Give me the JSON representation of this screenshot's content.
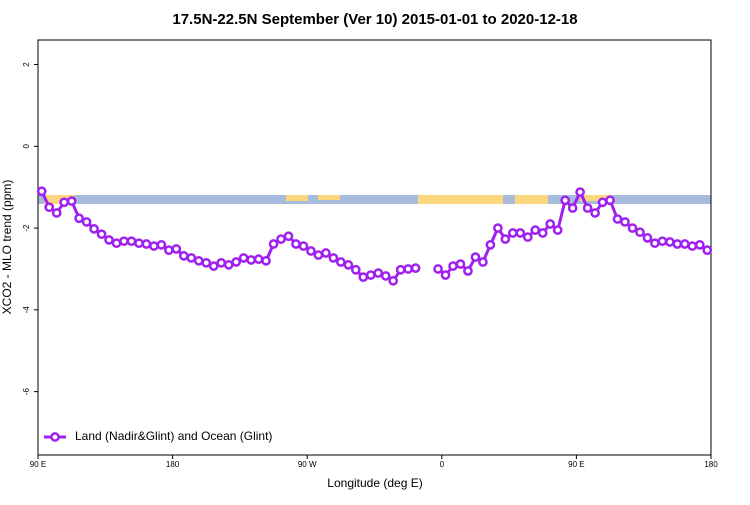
{
  "chart_data": {
    "type": "line",
    "title": "17.5N-22.5N September (Ver 10)   2015-01-01 to 2020-12-18",
    "x_label": "Longitude (deg E)",
    "y_label": "XCO2 - MLO trend (ppm)",
    "xlim": [
      90,
      540
    ],
    "xticks": [
      {
        "value": 90,
        "label": "90 E"
      },
      180,
      {
        "value": 270,
        "label": "90 W"
      },
      {
        "value": 360,
        "label": "0"
      },
      {
        "value": 450,
        "label": "90 E"
      },
      {
        "value": 540,
        "label": "180"
      }
    ],
    "ylim": [
      -7.55,
      2.6
    ],
    "yticks": [
      2,
      0,
      -2,
      -4,
      -6
    ],
    "legend": "bottom-left",
    "x": [
      92.5,
      97.5,
      102.5,
      107.5,
      112.5,
      117.5,
      122.5,
      127.5,
      132.5,
      137.5,
      142.5,
      147.5,
      152.5,
      157.5,
      162.5,
      167.5,
      172.5,
      177.5,
      182.5,
      187.5,
      192.5,
      197.5,
      202.5,
      207.5,
      212.5,
      217.5,
      222.5,
      227.5,
      232.5,
      237.5,
      242.5,
      247.5,
      252.5,
      257.5,
      262.5,
      267.5,
      272.5,
      277.5,
      282.5,
      287.5,
      292.5,
      297.5,
      302.5,
      307.5,
      312.5,
      317.5,
      322.5,
      327.5,
      332.5,
      337.5,
      342.5,
      347.5,
      352.5,
      357.5,
      362.5,
      367.5,
      372.5,
      377.5,
      382.5,
      387.5,
      392.5,
      397.5,
      402.5,
      407.5,
      412.5,
      417.5,
      422.5,
      427.5,
      432.5,
      437.5,
      442.5,
      447.5,
      452.5,
      457.5,
      462.5,
      467.5,
      472.5,
      477.5,
      482.5,
      487.5,
      492.5,
      497.5,
      502.5,
      507.5,
      512.5,
      517.5,
      522.5,
      527.5,
      532.5,
      537.5
    ],
    "series": [
      {
        "name": "Land (Nadir&Glint) and Ocean (Glint)",
        "color": "#a020f0",
        "values": [
          -1.1,
          -1.49,
          -1.63,
          -1.37,
          -1.34,
          -1.76,
          -1.85,
          -2.02,
          -2.15,
          -2.29,
          -2.37,
          -2.32,
          -2.32,
          -2.37,
          -2.39,
          -2.44,
          -2.41,
          -2.54,
          -2.51,
          -2.68,
          -2.73,
          -2.8,
          -2.85,
          -2.93,
          -2.85,
          -2.9,
          -2.83,
          -2.73,
          -2.78,
          -2.76,
          -2.8,
          -2.39,
          -2.27,
          -2.2,
          -2.39,
          -2.44,
          -2.56,
          -2.66,
          -2.61,
          -2.73,
          -2.83,
          -2.9,
          -3.02,
          -3.2,
          -3.15,
          -3.1,
          -3.17,
          -3.29,
          -3.02,
          -3.0,
          -2.98,
          null,
          null,
          -3.0,
          -3.15,
          -2.93,
          -2.88,
          -3.05,
          -2.71,
          -2.83,
          -2.41,
          -2.0,
          -2.27,
          -2.12,
          -2.12,
          -2.22,
          -2.05,
          -2.12,
          -1.9,
          -2.05,
          -1.32,
          -1.51,
          -1.12,
          -1.51,
          -1.63,
          -1.37,
          -1.32,
          -1.78,
          -1.85,
          -2.0,
          -2.1,
          -2.24,
          -2.37,
          -2.32,
          -2.34,
          -2.39,
          -2.39,
          -2.44,
          -2.41,
          -2.54
        ]
      }
    ]
  }
}
